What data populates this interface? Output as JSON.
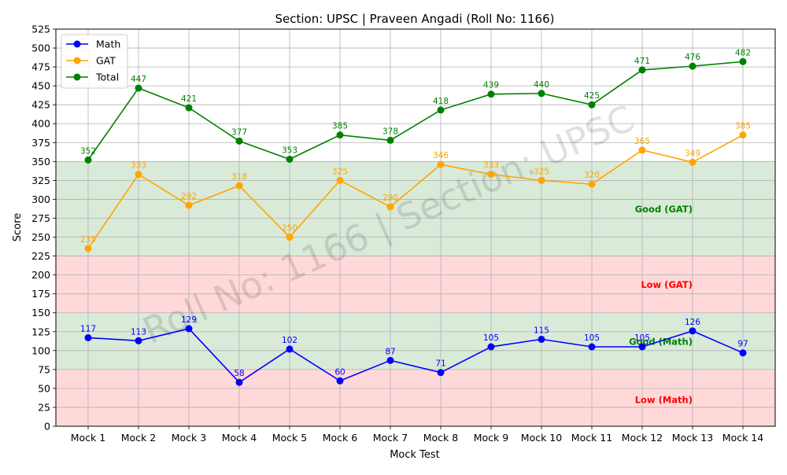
{
  "chart_data": {
    "type": "line",
    "title": "Section: UPSC | Praveen Angadi (Roll No: 1166)",
    "xlabel": "Mock Test",
    "ylabel": "Score",
    "ylim": [
      0,
      525
    ],
    "ytick_step": 25,
    "grid": true,
    "legend_position": "top-left",
    "categories": [
      "Mock 1",
      "Mock 2",
      "Mock 3",
      "Mock 4",
      "Mock 5",
      "Mock 6",
      "Mock 7",
      "Mock 8",
      "Mock 9",
      "Mock 10",
      "Mock 11",
      "Mock 12",
      "Mock 13",
      "Mock 14"
    ],
    "series": [
      {
        "name": "Math",
        "color": "#0000ff",
        "values": [
          117,
          113,
          129,
          58,
          102,
          60,
          87,
          71,
          105,
          115,
          105,
          105,
          126,
          97
        ]
      },
      {
        "name": "GAT",
        "color": "#ffa500",
        "values": [
          235,
          333,
          292,
          318,
          250,
          325,
          290,
          346,
          333,
          325,
          320,
          365,
          349,
          385
        ]
      },
      {
        "name": "Total",
        "color": "#008000",
        "values": [
          352,
          447,
          421,
          377,
          353,
          385,
          378,
          418,
          439,
          440,
          425,
          471,
          476,
          482
        ]
      }
    ],
    "data_labels": {
      "Math": [
        "117",
        "113",
        "129",
        "58",
        "102",
        "60",
        "87",
        "71",
        "105",
        "115",
        "105",
        "105",
        "126",
        "97"
      ],
      "GAT": [
        "235",
        "333",
        "292",
        "318",
        "250",
        "325",
        "290",
        "346",
        "333",
        "325",
        "320",
        "365",
        "349",
        "385"
      ],
      "Total": [
        "352",
        "447",
        "421",
        "377",
        "353",
        "385",
        "378",
        "418",
        "439",
        "440",
        "425",
        "471",
        "476",
        "482"
      ]
    },
    "bands": [
      {
        "from": 0,
        "to": 75,
        "color": "#ffd9d9",
        "label": "Low (Math)",
        "label_color": "#ff0000",
        "label_y": 35
      },
      {
        "from": 75,
        "to": 150,
        "color": "#d9ead9",
        "label": "Good (Math)",
        "label_color": "#008000",
        "label_y": 112
      },
      {
        "from": 150,
        "to": 225,
        "color": "#ffd9d9",
        "label": "Low (GAT)",
        "label_color": "#ff0000",
        "label_y": 187
      },
      {
        "from": 225,
        "to": 350,
        "color": "#d9ead9",
        "label": "Good (GAT)",
        "label_color": "#008000",
        "label_y": 287
      }
    ],
    "watermark": "Roll No: 1166 | Section: UPSC"
  }
}
